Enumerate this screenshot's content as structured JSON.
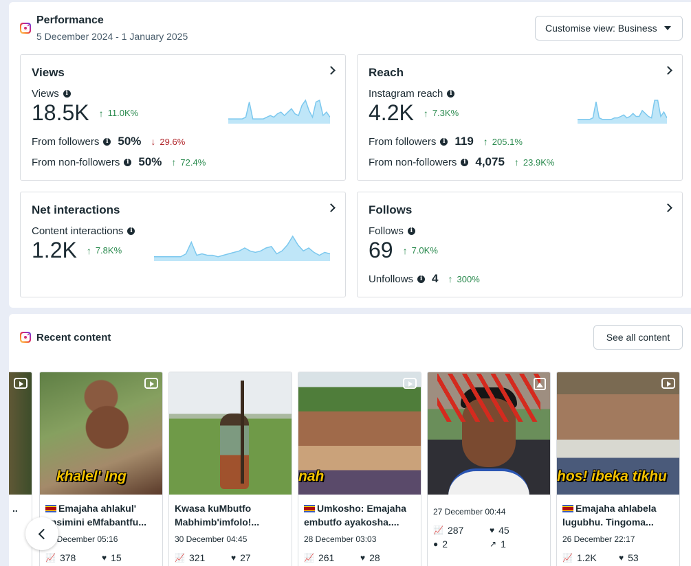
{
  "performance": {
    "title": "Performance",
    "date_range": "5 December 2024 - 1 January 2025",
    "customise_label": "Customise view: Business"
  },
  "cards": {
    "views": {
      "title": "Views",
      "metric_label": "Views",
      "value": "18.5K",
      "change": "11.0K%",
      "rows": [
        {
          "label": "From followers",
          "value": "50%",
          "change": "29.6%",
          "direction": "down"
        },
        {
          "label": "From non-followers",
          "value": "50%",
          "change": "72.4%",
          "direction": "up"
        }
      ],
      "sparkline": [
        2,
        2,
        2,
        2,
        2,
        3,
        12,
        2,
        2,
        2,
        2,
        3,
        4,
        3,
        5,
        6,
        4,
        6,
        8,
        5,
        4,
        10,
        13,
        7,
        3,
        12,
        13,
        4,
        6,
        3
      ]
    },
    "reach": {
      "title": "Reach",
      "metric_label": "Instagram reach",
      "value": "4.2K",
      "change": "7.3K%",
      "rows": [
        {
          "label": "From followers",
          "value": "119",
          "change": "205.1%",
          "direction": "up"
        },
        {
          "label": "From non-followers",
          "value": "4,075",
          "change": "23.9K%",
          "direction": "up"
        }
      ],
      "sparkline": [
        2,
        2,
        2,
        2,
        2,
        3,
        14,
        3,
        2,
        2,
        2,
        2,
        3,
        3,
        4,
        5,
        3,
        4,
        6,
        4,
        4,
        8,
        6,
        4,
        3,
        15,
        15,
        4,
        7,
        3
      ]
    },
    "interactions": {
      "title": "Net interactions",
      "metric_label": "Content interactions",
      "value": "1.2K",
      "change": "7.8K%",
      "sparkline": [
        2,
        2,
        2,
        2,
        2,
        2,
        4,
        12,
        3,
        4,
        3,
        3,
        2,
        3,
        4,
        5,
        6,
        8,
        6,
        5,
        6,
        8,
        9,
        4,
        6,
        10,
        16,
        10,
        6,
        8,
        5,
        3,
        5,
        4
      ]
    },
    "follows": {
      "title": "Follows",
      "metric_label": "Follows",
      "value": "69",
      "change": "7.0K%",
      "unfollows_label": "Unfollows",
      "unfollows_value": "4",
      "unfollows_change": "300%"
    }
  },
  "recent": {
    "title": "Recent content",
    "see_all_label": "See all content",
    "posts": [
      {
        "caption_lines": [
          "..",
          ""
        ],
        "has_flag": false,
        "date": "",
        "views": "",
        "likes": "",
        "icon": "reel-icon",
        "overlay": ""
      },
      {
        "caption_lines": [
          "Emajaha ahlakul'",
          "ensimini eMfabantfu..."
        ],
        "has_flag": true,
        "date": "30 December 05:16",
        "views": "378",
        "likes": "15",
        "icon": "reel-icon",
        "overlay": "khalel' Ing"
      },
      {
        "caption_lines": [
          "Kwasa kuMbutfo",
          "Mabhimb'imfolo!..."
        ],
        "has_flag": false,
        "date": "30 December 04:45",
        "views": "321",
        "likes": "27",
        "icon": "",
        "overlay": ""
      },
      {
        "caption_lines": [
          "Umkosho: Emajaha",
          "embutfo ayakosha...."
        ],
        "has_flag": true,
        "date": "28 December 03:03",
        "views": "261",
        "likes": "28",
        "icon": "reel-icon",
        "overlay": "nah"
      },
      {
        "caption_lines": [],
        "has_flag": false,
        "date": "27 December 00:44",
        "views": "287",
        "likes": "45",
        "comments": "2",
        "shares": "1",
        "icon": "image-icon",
        "overlay": ""
      },
      {
        "caption_lines": [
          "Emajaha ahlabela",
          "lugubhu. Tingoma..."
        ],
        "has_flag": true,
        "date": "26 December 22:17",
        "views": "1.2K",
        "likes": "53",
        "icon": "reel-icon",
        "overlay": "hos! ibeka tikhu"
      }
    ]
  }
}
